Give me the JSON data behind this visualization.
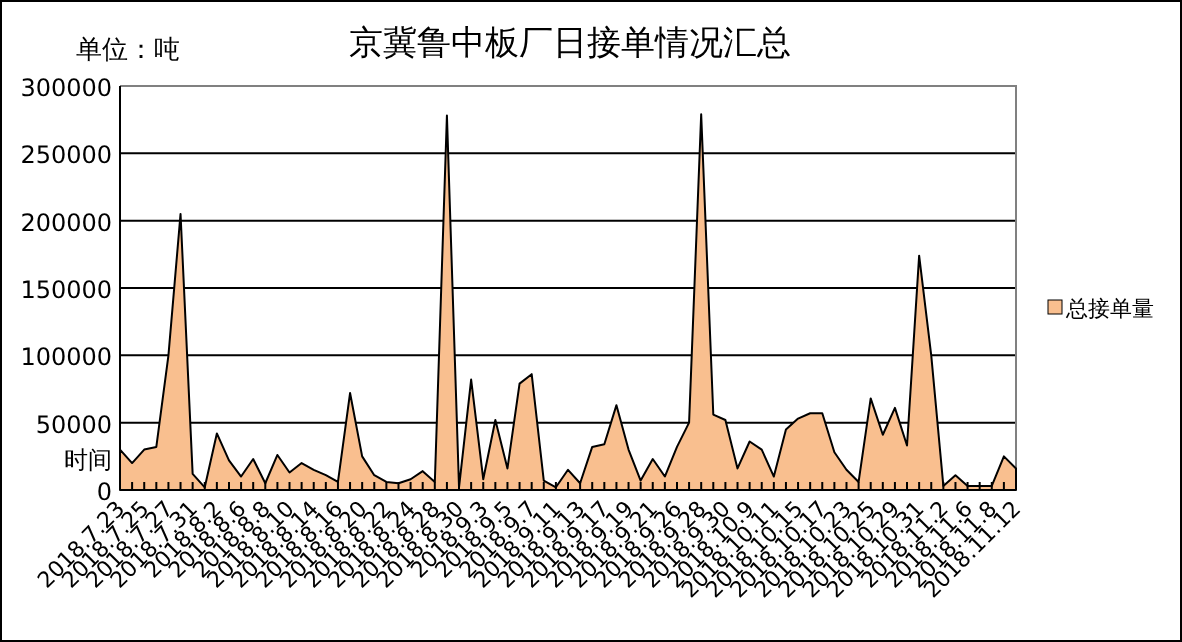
{
  "chart_data": {
    "type": "area",
    "title": "京冀鲁中板厂日接单情况汇总",
    "ylabel": "单位：吨",
    "xlabel": "时间",
    "categories": [
      "2018.7.23",
      null,
      "2018.7.25",
      null,
      "2018.7.27",
      null,
      "2018.7.31",
      null,
      "2018.8.2",
      null,
      "2018.8.6",
      null,
      "2018.8.8",
      null,
      "2018.8.10",
      null,
      "2018.8.14",
      null,
      "2018.8.16",
      null,
      "2018.8.20",
      null,
      "2018.8.22",
      null,
      "2018.8.24",
      null,
      "2018.8.28",
      null,
      "2018.8.30",
      null,
      "2018.9.3",
      null,
      "2018.9.5",
      null,
      "2018.9.7",
      null,
      "2018.9.11",
      null,
      "2018.9.13",
      null,
      "2018.9.17",
      null,
      "2018.9.19",
      null,
      "2018.9.21",
      null,
      "2018.9.26",
      null,
      "2018.9.28",
      null,
      "2018.9.30",
      null,
      "2018.10.9",
      null,
      "2018.10.11",
      null,
      "2018.10.15",
      null,
      "2018.10.17",
      null,
      "2018.10.23",
      null,
      "2018.10.25",
      null,
      "2018.10.29",
      null,
      "2018.10.31",
      null,
      "2018.11.2",
      null,
      "2018.11.6",
      null,
      "2018.11.8",
      null,
      "2018.11.12"
    ],
    "series": [
      {
        "name": "总接单量",
        "color": "#f9bf8f",
        "values": [
          30000,
          20000,
          30000,
          32000,
          100000,
          205000,
          12000,
          2000,
          42000,
          22000,
          10000,
          23000,
          5000,
          26000,
          13000,
          20000,
          15000,
          11000,
          6000,
          72000,
          25000,
          11000,
          6000,
          5000,
          8000,
          14000,
          6000,
          278000,
          2000,
          82000,
          8000,
          52000,
          16000,
          79000,
          86000,
          7000,
          2000,
          15000,
          5000,
          32000,
          34000,
          63000,
          30000,
          7000,
          23000,
          10000,
          32000,
          50000,
          279000,
          56000,
          52000,
          16000,
          36000,
          30000,
          10000,
          45000,
          53000,
          57000,
          57000,
          28000,
          15000,
          6000,
          68000,
          41000,
          61000,
          33000,
          174000,
          100000,
          3000,
          11000,
          3000,
          3000,
          3000,
          25000,
          16000
        ]
      }
    ],
    "ylim": [
      0,
      300000
    ],
    "yticks": [
      0,
      50000,
      100000,
      150000,
      200000,
      250000,
      300000
    ],
    "grid": "y",
    "legend": "right"
  }
}
